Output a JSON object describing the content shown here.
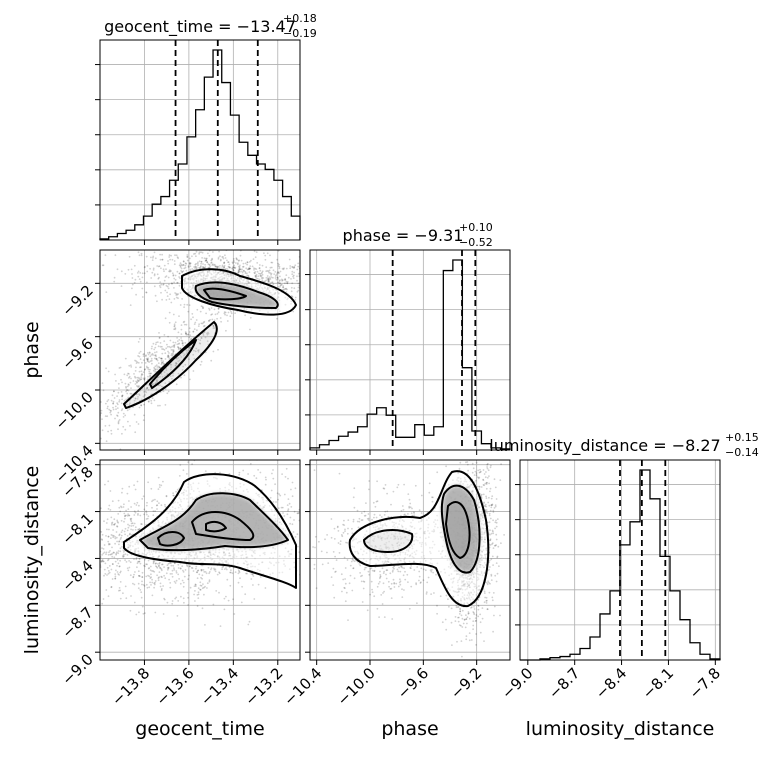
{
  "chart_data": {
    "type": "corner",
    "parameters": [
      "geocent_time",
      "phase",
      "luminosity_distance"
    ],
    "axes": {
      "geocent_time": {
        "range": [
          -14.0,
          -13.1
        ],
        "ticks": [
          -13.8,
          -13.6,
          -13.4,
          -13.2
        ],
        "tick_labels": [
          "−13.8",
          "−13.6",
          "−13.4",
          "−13.2"
        ]
      },
      "phase": {
        "range": [
          -10.45,
          -8.95
        ],
        "ticks": [
          -10.4,
          -10.0,
          -9.6,
          -9.2
        ],
        "tick_labels": [
          "−10.4",
          "−10.0",
          "−9.6",
          "−9.2"
        ]
      },
      "luminosity_distance": {
        "range": [
          -9.05,
          -7.77
        ],
        "ticks": [
          -9.0,
          -8.7,
          -8.4,
          -8.1,
          -7.8
        ],
        "tick_labels": [
          "−9.0",
          "−8.7",
          "−8.4",
          "−8.1",
          "−7.8"
        ]
      }
    },
    "titles": [
      {
        "param": "geocent_time",
        "prefix": "geocent_time = ",
        "median": "−13.47",
        "plus": "+0.18",
        "minus": "−0.19"
      },
      {
        "param": "phase",
        "prefix": "phase = ",
        "median": "−9.31",
        "plus": "+0.10",
        "minus": "−0.52"
      },
      {
        "param": "luminosity_distance",
        "prefix": "luminosity_distance = ",
        "median": "−8.27",
        "plus": "+0.15",
        "minus": "−0.14"
      }
    ],
    "quantiles": {
      "geocent_time": [
        -13.66,
        -13.47,
        -13.29
      ],
      "phase": [
        -9.83,
        -9.31,
        -9.21
      ],
      "luminosity_distance": [
        -8.41,
        -8.27,
        -8.12
      ]
    },
    "histograms": {
      "geocent_time": {
        "edges_min": -14.0,
        "edges_max": -13.1,
        "counts": [
          1,
          3,
          6,
          9,
          14,
          22,
          33,
          40,
          55,
          70,
          95,
          120,
          150,
          175,
          145,
          115,
          90,
          78,
          70,
          65,
          55,
          40,
          22
        ]
      },
      "phase": {
        "edges_min": -10.45,
        "edges_max": -8.95,
        "counts": [
          2,
          5,
          9,
          13,
          17,
          22,
          34,
          40,
          33,
          12,
          12,
          24,
          14,
          22,
          170,
          180,
          78,
          18,
          6,
          2,
          1
        ]
      },
      "luminosity_distance": {
        "edges_min": -9.05,
        "edges_max": -7.77,
        "counts": [
          0,
          0,
          1,
          2,
          3,
          5,
          10,
          20,
          40,
          60,
          100,
          120,
          165,
          140,
          90,
          60,
          35,
          15,
          5,
          1
        ]
      }
    },
    "xlabels": [
      "geocent_time",
      "phase",
      "luminosity_distance"
    ],
    "ylabels": [
      "phase",
      "luminosity_distance"
    ],
    "grid": true
  }
}
